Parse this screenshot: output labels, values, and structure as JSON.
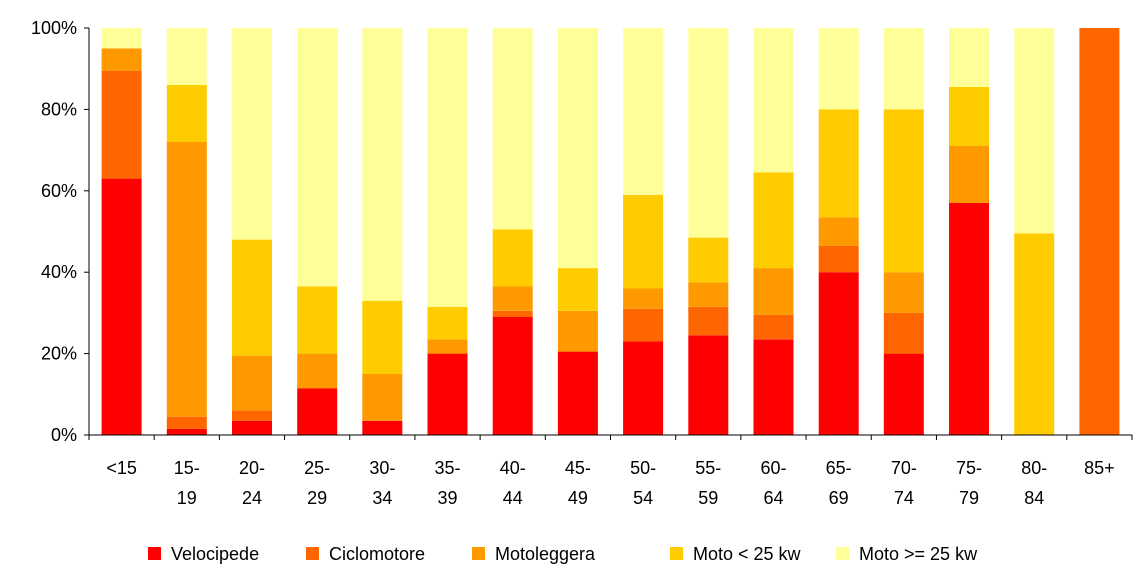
{
  "chart_data": {
    "type": "bar",
    "stacked": true,
    "percent": true,
    "title": "",
    "xlabel": "",
    "ylabel": "",
    "ylim": [
      0,
      100
    ],
    "y_ticks": [
      "0%",
      "20%",
      "40%",
      "60%",
      "80%",
      "100%"
    ],
    "categories": [
      [
        "<15"
      ],
      [
        "15-",
        "19"
      ],
      [
        "20-",
        "24"
      ],
      [
        "25-",
        "29"
      ],
      [
        "30-",
        "34"
      ],
      [
        "35-",
        "39"
      ],
      [
        "40-",
        "44"
      ],
      [
        "45-",
        "49"
      ],
      [
        "50-",
        "54"
      ],
      [
        "55-",
        "59"
      ],
      [
        "60-",
        "64"
      ],
      [
        "65-",
        "69"
      ],
      [
        "70-",
        "74"
      ],
      [
        "75-",
        "79"
      ],
      [
        "80-",
        "84"
      ],
      [
        "85+"
      ]
    ],
    "legend_position": "bottom",
    "series": [
      {
        "name": "Velocipede",
        "color": "#ff0000",
        "values": [
          63,
          1.5,
          3.5,
          11.5,
          3.5,
          20,
          29,
          20.5,
          23,
          24.5,
          23.5,
          40,
          20,
          57,
          0,
          0
        ]
      },
      {
        "name": "Ciclomotore",
        "color": "#ff6600",
        "values": [
          26.5,
          3,
          2.5,
          0,
          0,
          0,
          1.5,
          0,
          8,
          7,
          6,
          6.5,
          10,
          0,
          0,
          100
        ]
      },
      {
        "name": "Motoleggera",
        "color": "#ff9900",
        "values": [
          5.5,
          67.5,
          13.5,
          8.5,
          11.5,
          3.5,
          6,
          10,
          5,
          6,
          11.5,
          7,
          10,
          14,
          0,
          0
        ]
      },
      {
        "name": "Moto < 25 kw",
        "color": "#ffcc00",
        "values": [
          0,
          14,
          28.5,
          16.5,
          18,
          8,
          14,
          10.5,
          23,
          11,
          23.5,
          26.5,
          40,
          14.5,
          49.5,
          0
        ]
      },
      {
        "name": "Moto >= 25 kw",
        "color": "#ffff99",
        "values": [
          5,
          14,
          52,
          63.5,
          67,
          68.5,
          49.5,
          59,
          41,
          51.5,
          35.5,
          20,
          20,
          14.5,
          50.5,
          0
        ]
      }
    ]
  }
}
